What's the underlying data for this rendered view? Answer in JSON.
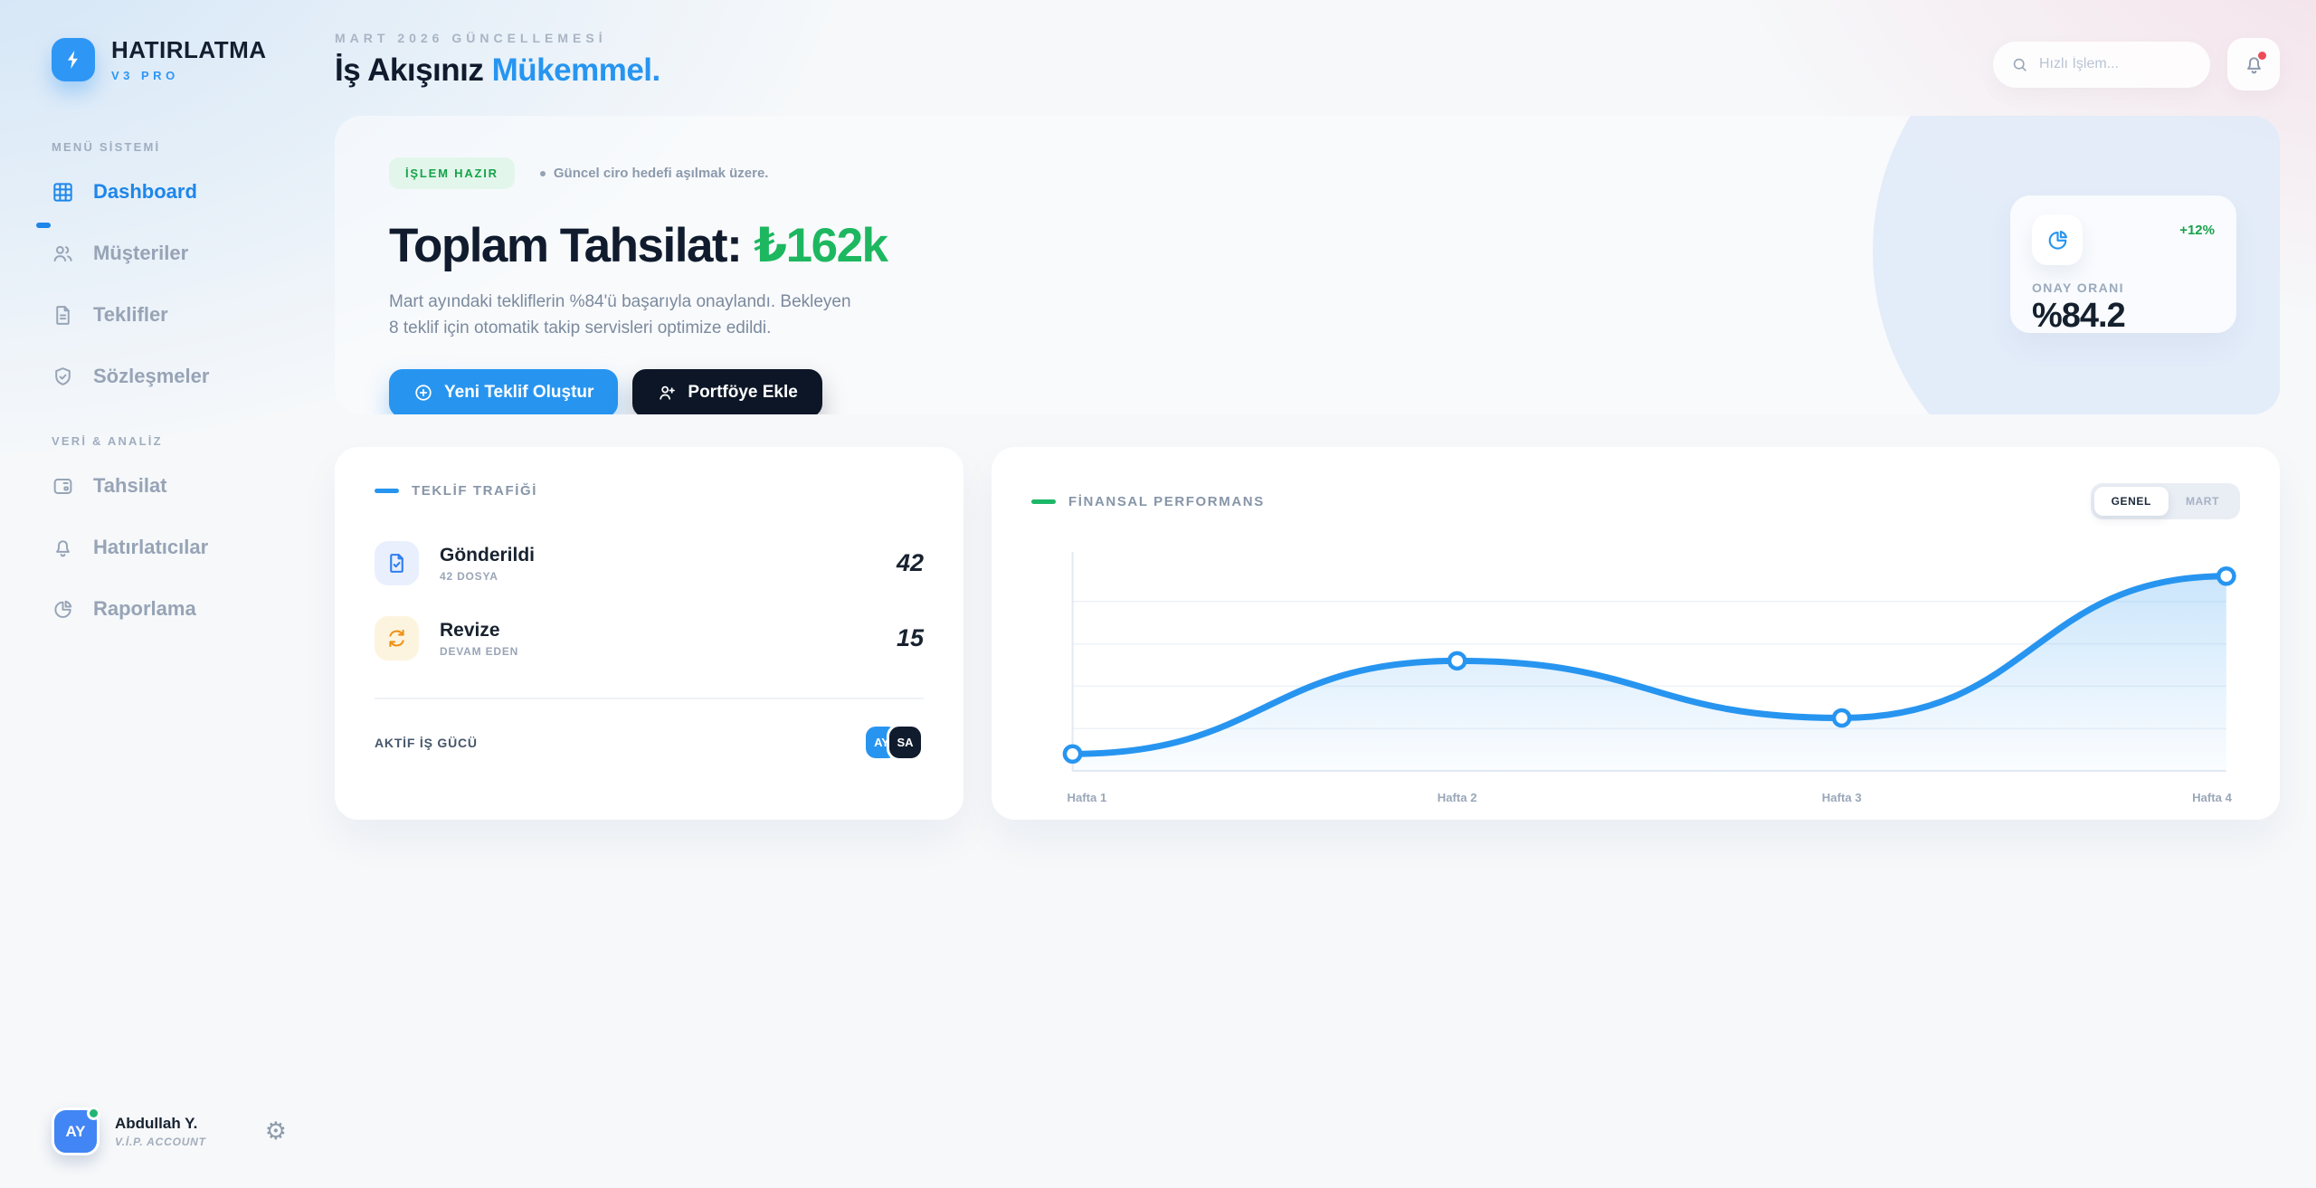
{
  "app": {
    "name": "HATIRLATMA",
    "version": "V3 PRO"
  },
  "colors": {
    "accent_blue": "#2795f0",
    "accent_green": "#1db760",
    "warn_orange": "#ef9115",
    "dark_navy": "#0c1626",
    "alert_red": "#ee4b5a"
  },
  "sidebar": {
    "sections": [
      {
        "label": "MENÜ SİSTEMİ",
        "items": [
          {
            "label": "Dashboard",
            "icon": "grid-icon",
            "active": true
          },
          {
            "label": "Müşteriler",
            "icon": "users-icon",
            "active": false
          },
          {
            "label": "Teklifler",
            "icon": "file-icon",
            "active": false
          },
          {
            "label": "Sözleşmeler",
            "icon": "shield-check-icon",
            "active": false
          }
        ]
      },
      {
        "label": "VERİ & ANALİZ",
        "items": [
          {
            "label": "Tahsilat",
            "icon": "wallet-icon",
            "active": false
          },
          {
            "label": "Hatırlatıcılar",
            "icon": "bell-icon",
            "active": false
          },
          {
            "label": "Raporlama",
            "icon": "pie-icon",
            "active": false
          }
        ]
      }
    ]
  },
  "header": {
    "eyebrow": "MART 2026 GÜNCELLEMESİ",
    "title_primary": "İş Akışınız",
    "title_accent": "Mükemmel."
  },
  "search": {
    "placeholder": "Hızlı İşlem..."
  },
  "hero": {
    "badge": "İŞLEM HAZIR",
    "badge_note": "Güncel ciro hedefi aşılmak üzere.",
    "title_label": "Toplam Tahsilat:",
    "title_value": "₺162k",
    "description": "Mart ayındaki tekliflerin %84'ü başarıyla onaylandı. Bekleyen 8 teklif için otomatik takip servisleri optimize edildi.",
    "primary_button": "Yeni Teklif Oluştur",
    "secondary_button": "Portföye Ekle",
    "stat": {
      "change": "+12%",
      "label": "ONAY ORANI",
      "value": "%84.2"
    }
  },
  "traffic": {
    "title": "TEKLİF TRAFİĞİ",
    "items": [
      {
        "title": "Gönderildi",
        "subtitle": "42 DOSYA",
        "value": "42",
        "icon": "file-check-icon"
      },
      {
        "title": "Revize",
        "subtitle": "DEVAM EDEN",
        "value": "15",
        "icon": "refresh-icon"
      }
    ],
    "workforce": {
      "label": "AKTİF İŞ GÜCÜ",
      "avatars": [
        {
          "initials": "AY"
        },
        {
          "initials": "SA"
        }
      ]
    }
  },
  "finance": {
    "title": "FİNANSAL PERFORMANS",
    "tabs": [
      {
        "label": "GENEL",
        "active": true
      },
      {
        "label": "MART",
        "active": false
      }
    ]
  },
  "chart_data": {
    "type": "line",
    "categories": [
      "Hafta 1",
      "Hafta 2",
      "Hafta 3",
      "Hafta 4"
    ],
    "values": [
      8,
      52,
      25,
      92
    ],
    "title": "FİNANSAL PERFORMANS",
    "xlabel": "",
    "ylabel": "",
    "ylim": [
      0,
      100
    ],
    "grid": true,
    "legend": false,
    "line_color": "#2795f0",
    "area_fill": true,
    "smooth": true,
    "markers": "white circles with blue ring"
  },
  "user": {
    "initials": "AY",
    "name": "Abdullah Y.",
    "role": "V.İ.P. ACCOUNT",
    "status": "online"
  }
}
